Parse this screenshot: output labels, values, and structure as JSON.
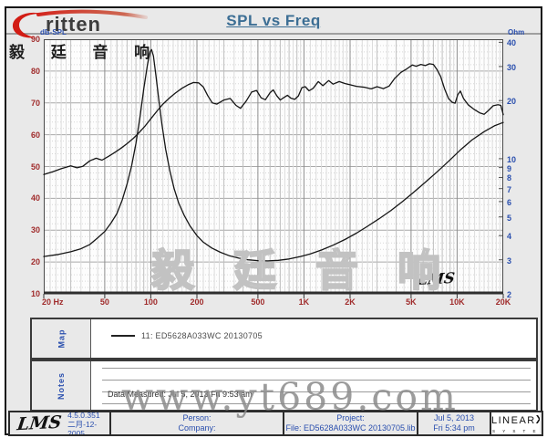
{
  "header": {
    "title": "SPL vs Freq",
    "logo_word": "ritten",
    "logo_cn": "毅 廷 音 响"
  },
  "chart": {
    "left_axis_title": "dB-SPL",
    "right_axis_title": "Ohm",
    "corner_logo": "LMS",
    "watermark": "毅 廷 音 响"
  },
  "chart_data": {
    "type": "line",
    "title": "SPL vs Freq",
    "xlabel": "Hz",
    "ylabel_left": "dB-SPL",
    "ylabel_right": "Ohm",
    "x_scale": "log",
    "xlim": [
      20,
      20000
    ],
    "ylim_left": [
      10,
      90
    ],
    "ylim_right": [
      2,
      41.5
    ],
    "grid": true,
    "x_ticks": [
      [
        20,
        "20 Hz"
      ],
      [
        50,
        "50"
      ],
      [
        100,
        "100"
      ],
      [
        200,
        "200"
      ],
      [
        500,
        "500"
      ],
      [
        1000,
        "1K"
      ],
      [
        2000,
        "2K"
      ],
      [
        5000,
        "5K"
      ],
      [
        10000,
        "10K"
      ],
      [
        20000,
        "20K"
      ]
    ],
    "y_ticks_left": [
      90,
      80,
      70,
      60,
      50,
      40,
      30,
      20,
      10
    ],
    "y_ticks_right": [
      40,
      30,
      20,
      10,
      9,
      8,
      7,
      6,
      5,
      4,
      3,
      2
    ],
    "legend": [
      "11: ED5628A033WC  20130705"
    ],
    "series": [
      {
        "name": "SPL (dB)",
        "axis": "left",
        "points": [
          [
            20,
            47.5
          ],
          [
            23,
            48.4
          ],
          [
            26,
            49.3
          ],
          [
            30,
            50.2
          ],
          [
            33,
            49.6
          ],
          [
            36,
            50.1
          ],
          [
            40,
            51.8
          ],
          [
            44,
            52.6
          ],
          [
            48,
            52.0
          ],
          [
            53,
            53.2
          ],
          [
            58,
            54.4
          ],
          [
            64,
            55.8
          ],
          [
            70,
            57.2
          ],
          [
            77,
            58.9
          ],
          [
            84,
            60.7
          ],
          [
            92,
            62.8
          ],
          [
            100,
            65.0
          ],
          [
            110,
            67.5
          ],
          [
            120,
            69.6
          ],
          [
            132,
            71.5
          ],
          [
            145,
            73.1
          ],
          [
            160,
            74.6
          ],
          [
            175,
            75.7
          ],
          [
            190,
            76.4
          ],
          [
            205,
            76.3
          ],
          [
            220,
            75.0
          ],
          [
            235,
            72.3
          ],
          [
            252,
            70.0
          ],
          [
            270,
            69.6
          ],
          [
            300,
            70.9
          ],
          [
            330,
            71.4
          ],
          [
            360,
            69.2
          ],
          [
            385,
            68.3
          ],
          [
            420,
            70.6
          ],
          [
            455,
            73.4
          ],
          [
            490,
            73.9
          ],
          [
            525,
            71.6
          ],
          [
            560,
            71.0
          ],
          [
            600,
            73.2
          ],
          [
            630,
            74.1
          ],
          [
            665,
            72.2
          ],
          [
            700,
            70.9
          ],
          [
            740,
            71.7
          ],
          [
            780,
            72.4
          ],
          [
            820,
            71.5
          ],
          [
            870,
            71.1
          ],
          [
            920,
            72.2
          ],
          [
            970,
            74.8
          ],
          [
            1020,
            75.1
          ],
          [
            1080,
            73.8
          ],
          [
            1150,
            74.6
          ],
          [
            1240,
            76.7
          ],
          [
            1330,
            75.4
          ],
          [
            1450,
            77.0
          ],
          [
            1550,
            75.9
          ],
          [
            1700,
            76.7
          ],
          [
            1850,
            76.1
          ],
          [
            2000,
            75.7
          ],
          [
            2200,
            75.2
          ],
          [
            2500,
            74.9
          ],
          [
            2750,
            74.4
          ],
          [
            3000,
            75.1
          ],
          [
            3300,
            74.5
          ],
          [
            3600,
            75.3
          ],
          [
            3900,
            77.6
          ],
          [
            4300,
            79.6
          ],
          [
            4700,
            80.7
          ],
          [
            5100,
            81.9
          ],
          [
            5400,
            81.5
          ],
          [
            5800,
            82.1
          ],
          [
            6200,
            81.7
          ],
          [
            6600,
            82.3
          ],
          [
            7000,
            82.1
          ],
          [
            7400,
            80.4
          ],
          [
            7800,
            78.3
          ],
          [
            8300,
            74.3
          ],
          [
            8800,
            71.3
          ],
          [
            9300,
            70.2
          ],
          [
            9700,
            69.9
          ],
          [
            10100,
            72.6
          ],
          [
            10500,
            73.7
          ],
          [
            11000,
            71.4
          ],
          [
            11800,
            69.4
          ],
          [
            12800,
            68.1
          ],
          [
            14000,
            66.9
          ],
          [
            15000,
            66.4
          ],
          [
            16000,
            67.6
          ],
          [
            17200,
            69.1
          ],
          [
            18500,
            69.4
          ],
          [
            19300,
            69.2
          ],
          [
            20000,
            66.3
          ]
        ]
      },
      {
        "name": "Impedance (Ohm)",
        "axis": "right",
        "points": [
          [
            20,
            3.12
          ],
          [
            25,
            3.2
          ],
          [
            30,
            3.3
          ],
          [
            35,
            3.42
          ],
          [
            40,
            3.6
          ],
          [
            45,
            3.9
          ],
          [
            50,
            4.2
          ],
          [
            55,
            4.65
          ],
          [
            60,
            5.2
          ],
          [
            65,
            6.1
          ],
          [
            70,
            7.4
          ],
          [
            75,
            9.2
          ],
          [
            80,
            12.0
          ],
          [
            85,
            16.5
          ],
          [
            90,
            23.0
          ],
          [
            95,
            30.5
          ],
          [
            99,
            35.8
          ],
          [
            101,
            36.7
          ],
          [
            104,
            34.0
          ],
          [
            108,
            27.0
          ],
          [
            113,
            20.0
          ],
          [
            118,
            15.2
          ],
          [
            125,
            11.2
          ],
          [
            133,
            8.7
          ],
          [
            142,
            7.0
          ],
          [
            152,
            5.9
          ],
          [
            165,
            5.1
          ],
          [
            180,
            4.5
          ],
          [
            200,
            4.0
          ],
          [
            220,
            3.7
          ],
          [
            250,
            3.45
          ],
          [
            285,
            3.28
          ],
          [
            325,
            3.15
          ],
          [
            375,
            3.06
          ],
          [
            430,
            3.0
          ],
          [
            500,
            2.97
          ],
          [
            580,
            2.96
          ],
          [
            680,
            2.98
          ],
          [
            800,
            3.03
          ],
          [
            950,
            3.12
          ],
          [
            1100,
            3.22
          ],
          [
            1300,
            3.37
          ],
          [
            1550,
            3.57
          ],
          [
            1850,
            3.82
          ],
          [
            2200,
            4.12
          ],
          [
            2600,
            4.47
          ],
          [
            3100,
            4.9
          ],
          [
            3700,
            5.4
          ],
          [
            4400,
            6.0
          ],
          [
            5200,
            6.7
          ],
          [
            6200,
            7.55
          ],
          [
            7400,
            8.55
          ],
          [
            8800,
            9.7
          ],
          [
            10500,
            11.1
          ],
          [
            12500,
            12.5
          ],
          [
            15000,
            13.8
          ],
          [
            17500,
            14.8
          ],
          [
            20000,
            15.4
          ]
        ]
      }
    ]
  },
  "map": {
    "label": "Map",
    "legend": "11: ED5628A033WC  20130705"
  },
  "notes": {
    "label": "Notes",
    "text": "Data Measured: Jul 5, 2013  Fri  9:53 am"
  },
  "watermark_url": "www.yt689.com",
  "footer": {
    "lms_logo": "LMS",
    "version": "4.5.0.351",
    "version_date": "二月-12-2005",
    "person_label": "Person:",
    "company_label": "Company:",
    "project_label": "Project:",
    "file_label": "File: ED5628A033WC  20130705.lib",
    "date": "Jul 5, 2013",
    "time": "Fri 5:34 pm",
    "brand_main": "LINEAR",
    "brand_x": "X",
    "brand_sub": "S Y S T E M S"
  },
  "colors": {
    "accent_red": "#a02c2c",
    "accent_blue": "#2a4fae",
    "title_blue": "#3c6e94",
    "curve": "#151515",
    "logo_red": "#d21c14"
  }
}
